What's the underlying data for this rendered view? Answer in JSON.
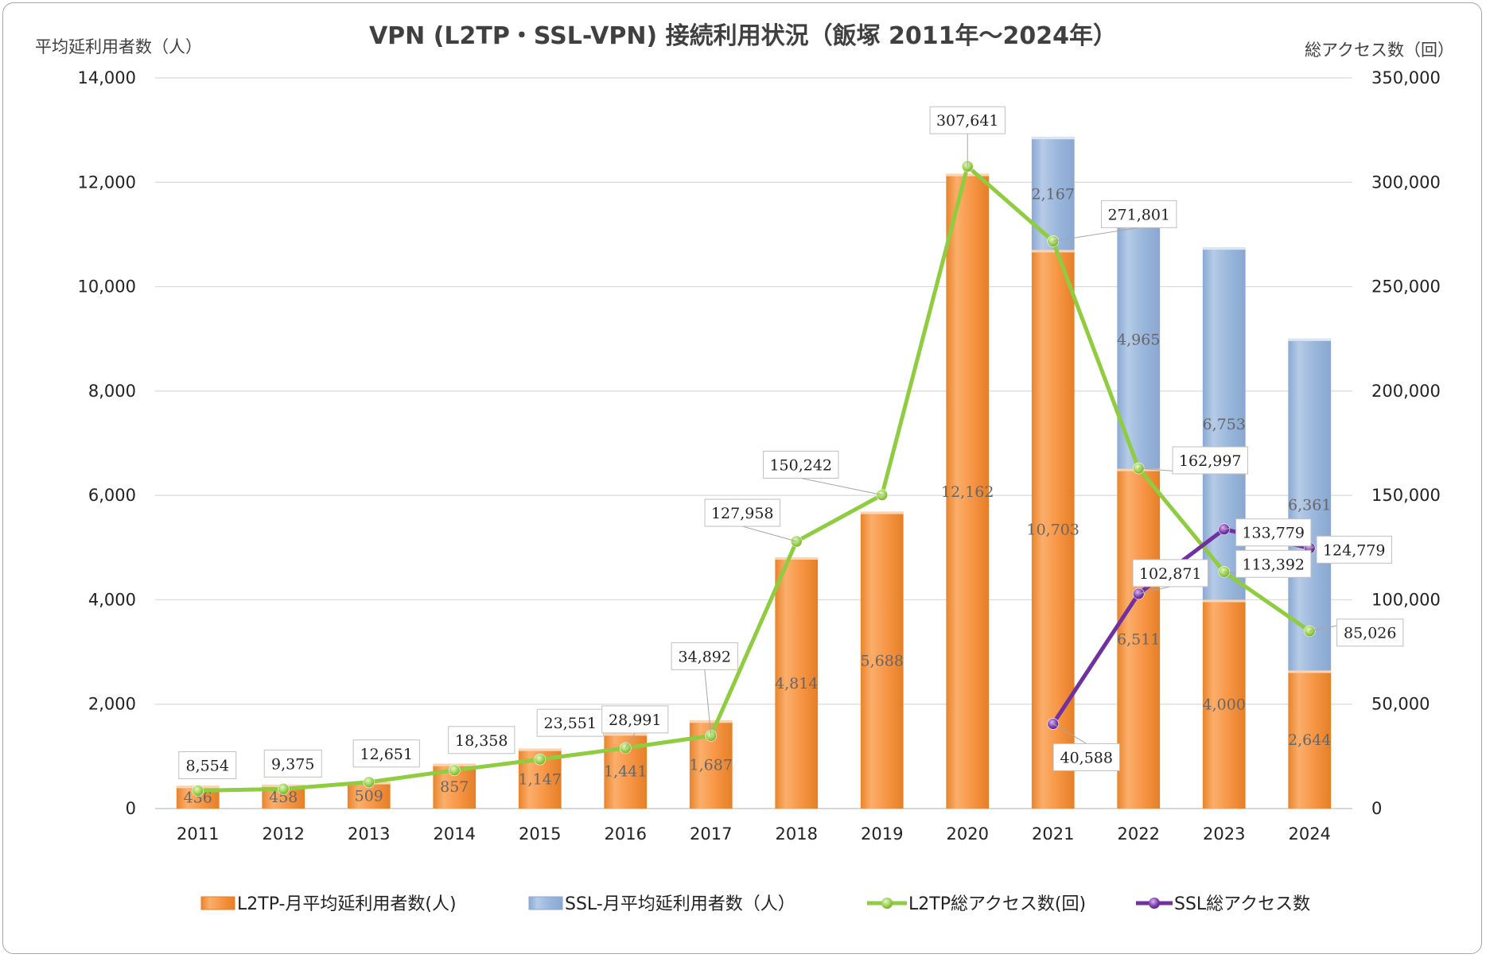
{
  "chart_data": {
    "type": "bar",
    "title": "VPN (L2TP・SSL-VPN) 接続利用状況（飯塚 2011年～2024年）",
    "ylabel_left": "平均延利用者数（人）",
    "ylabel_right": "総アクセス数（回）",
    "categories": [
      "2011",
      "2012",
      "2013",
      "2014",
      "2015",
      "2016",
      "2017",
      "2018",
      "2019",
      "2020",
      "2021",
      "2022",
      "2023",
      "2024"
    ],
    "ylim_left": [
      0,
      14000
    ],
    "ylim_right": [
      0,
      350000
    ],
    "yticks_left": [
      0,
      2000,
      4000,
      6000,
      8000,
      10000,
      12000,
      14000
    ],
    "yticks_right": [
      0,
      50000,
      100000,
      150000,
      200000,
      250000,
      300000,
      350000
    ],
    "grid": true,
    "legend_position": "bottom",
    "series": [
      {
        "name": "L2TP-月平均延利用者数(人)",
        "kind": "bar",
        "axis": "left",
        "color": "#f79646",
        "values": [
          436,
          458,
          509,
          857,
          1147,
          1441,
          1687,
          4814,
          5688,
          12162,
          10703,
          6511,
          4000,
          2644
        ],
        "labels": [
          "436",
          "458",
          "509",
          "857",
          "1,147",
          "1,441",
          "1,687",
          "4,814",
          "5,688",
          "12,162",
          "10,703",
          "6,511",
          "4,000",
          "2,644"
        ]
      },
      {
        "name": "SSL-月平均延利用者数（人）",
        "kind": "bar-stacked",
        "axis": "left",
        "color": "#95b3d7",
        "values": [
          null,
          null,
          null,
          null,
          null,
          null,
          null,
          null,
          null,
          null,
          2167,
          4965,
          6753,
          6361
        ],
        "labels": [
          "",
          "",
          "",
          "",
          "",
          "",
          "",
          "",
          "",
          "",
          "2,167",
          "4,965",
          "6,753",
          "6,361"
        ]
      },
      {
        "name": "L2TP総アクセス数(回)",
        "kind": "line",
        "axis": "right",
        "color": "#8fcc3f",
        "values": [
          8554,
          9375,
          12651,
          18358,
          23551,
          28991,
          34892,
          127958,
          150242,
          307641,
          271801,
          162997,
          113392,
          85026
        ],
        "labels": [
          "8,554",
          "9,375",
          "12,651",
          "18,358",
          "23,551",
          "28,991",
          "34,892",
          "127,958",
          "150,242",
          "307,641",
          "271,801",
          "162,997",
          "113,392",
          "85,026"
        ]
      },
      {
        "name": "SSL総アクセス数",
        "kind": "line",
        "axis": "right",
        "color": "#7030a0",
        "values": [
          null,
          null,
          null,
          null,
          null,
          null,
          null,
          null,
          null,
          null,
          40588,
          102871,
          133779,
          124779
        ],
        "labels": [
          "",
          "",
          "",
          "",
          "",
          "",
          "",
          "",
          "",
          "",
          "40,588",
          "102,871",
          "133,779",
          "124,779"
        ]
      }
    ]
  }
}
